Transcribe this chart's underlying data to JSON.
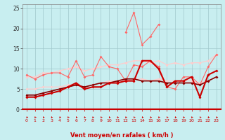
{
  "x": [
    0,
    1,
    2,
    3,
    4,
    5,
    6,
    7,
    8,
    9,
    10,
    11,
    12,
    13,
    14,
    15,
    16,
    17,
    18,
    19,
    20,
    21,
    22,
    23
  ],
  "line_dark1_y": [
    3,
    3,
    3.5,
    4,
    4.5,
    5.5,
    6.5,
    5,
    5.5,
    5.5,
    6.5,
    6.5,
    7,
    7,
    12,
    12,
    10,
    5.5,
    7,
    7,
    8,
    3,
    8.5,
    9.5
  ],
  "line_dark2_y": [
    3.5,
    3.5,
    4,
    4.5,
    5,
    5.5,
    6,
    5.5,
    6,
    6.5,
    6.5,
    7,
    7.5,
    7.5,
    7,
    7,
    7,
    6.5,
    6.5,
    6.5,
    6.5,
    6,
    7,
    8
  ],
  "line_med1_y": [
    8.5,
    7.5,
    8.5,
    9,
    9,
    8,
    12,
    8,
    8.5,
    13,
    10.5,
    10,
    7,
    11,
    10.5,
    12,
    10.5,
    5.5,
    5,
    8,
    8,
    6,
    10.5,
    13.5
  ],
  "line_med2_y": [
    null,
    null,
    null,
    null,
    null,
    null,
    null,
    null,
    null,
    null,
    null,
    null,
    19,
    24,
    16,
    18,
    21,
    null,
    null,
    null,
    null,
    null,
    null,
    null
  ],
  "line_light1_y": [
    8,
    8,
    9,
    9,
    9.5,
    10,
    10.5,
    9.5,
    10,
    10.5,
    11,
    11,
    11.5,
    12,
    12,
    11.5,
    12,
    11,
    11.5,
    11,
    11.5,
    11.5,
    12,
    13.5
  ],
  "line_light2_y": [
    5,
    5,
    5.5,
    5.5,
    5.5,
    6,
    6,
    5.5,
    6,
    6.5,
    7,
    7,
    7,
    7.5,
    7.5,
    7,
    7.5,
    7,
    7,
    7,
    7,
    6.5,
    7,
    8
  ],
  "xlabel": "Vent moyen/en rafales ( km/h )",
  "bg_color": "#c8eef0",
  "grid_color": "#a0c8cc",
  "color_dark": "#cc0000",
  "color_dark2": "#880000",
  "color_med": "#ff6666",
  "color_light": "#ffaaaa",
  "color_vlight": "#ffcccc",
  "yticks": [
    0,
    5,
    10,
    15,
    20,
    25
  ],
  "xticks": [
    0,
    1,
    2,
    3,
    4,
    5,
    6,
    7,
    8,
    9,
    10,
    11,
    12,
    13,
    14,
    15,
    16,
    17,
    18,
    19,
    20,
    21,
    22,
    23
  ],
  "ylim": [
    0,
    26
  ],
  "xlim": [
    -0.5,
    23.5
  ]
}
